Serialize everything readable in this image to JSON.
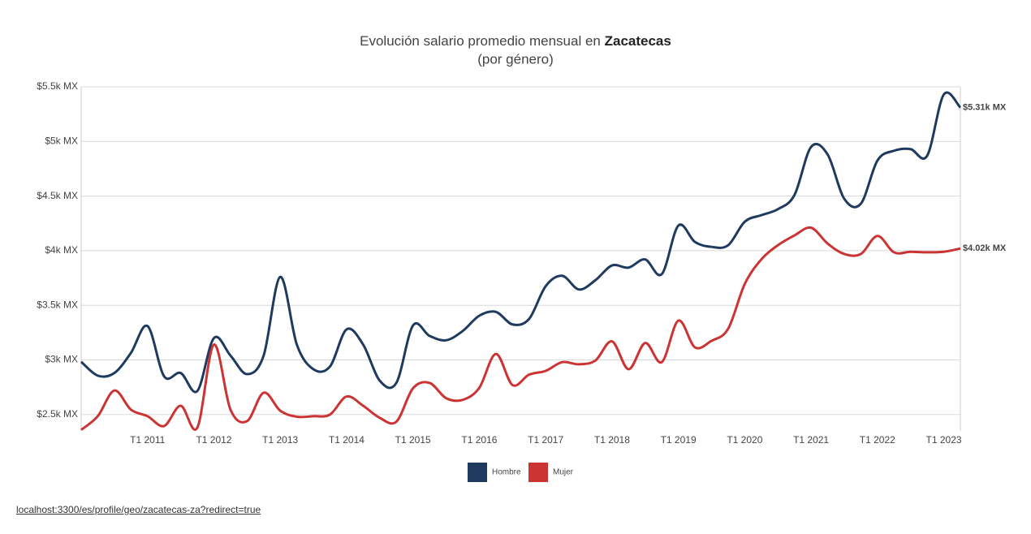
{
  "chart_data": {
    "type": "line",
    "title": "Evolución salario promedio mensual en",
    "title_emphasis": "Zacatecas",
    "subtitle": "(por género)",
    "categories": [
      null,
      null,
      null,
      null,
      "T1 2011",
      null,
      null,
      null,
      "T1 2012",
      null,
      null,
      null,
      "T1 2013",
      null,
      null,
      null,
      "T1 2014",
      null,
      null,
      null,
      "T1 2015",
      null,
      null,
      null,
      "T1 2016",
      null,
      null,
      null,
      "T1 2017",
      null,
      null,
      null,
      "T1 2018",
      null,
      null,
      null,
      "T1 2019",
      null,
      null,
      null,
      "T1 2020",
      null,
      null,
      null,
      "T1 2021",
      null,
      null,
      null,
      "T1 2022",
      null,
      null,
      null,
      "T1 2023",
      null
    ],
    "series": [
      {
        "name": "Hombre",
        "color": "#1f3a5f",
        "values": [
          2983,
          2856,
          2880,
          3065,
          3310,
          2850,
          2880,
          2715,
          3200,
          3040,
          2870,
          3040,
          3760,
          3140,
          2915,
          2940,
          3280,
          3140,
          2810,
          2790,
          3315,
          3220,
          3180,
          3265,
          3405,
          3440,
          3325,
          3375,
          3675,
          3770,
          3645,
          3730,
          3865,
          3845,
          3920,
          3785,
          4230,
          4080,
          4035,
          4050,
          4265,
          4325,
          4380,
          4510,
          4950,
          4880,
          4475,
          4430,
          4825,
          4915,
          4930,
          4870,
          5430,
          5310
        ],
        "value_labels": [
          null,
          null,
          null,
          null,
          null,
          null,
          null,
          null,
          null,
          null,
          null,
          null,
          null,
          null,
          null,
          null,
          null,
          null,
          null,
          null,
          null,
          null,
          null,
          null,
          null,
          null,
          null,
          null,
          null,
          null,
          null,
          null,
          null,
          null,
          null,
          null,
          null,
          null,
          null,
          null,
          null,
          null,
          null,
          null,
          null,
          null,
          null,
          null,
          null,
          null,
          null,
          null,
          null,
          "$5.31k MX"
        ]
      },
      {
        "name": "Mujer",
        "color": "#cc3333",
        "values": [
          2360,
          2485,
          2720,
          2545,
          2485,
          2395,
          2580,
          2380,
          3140,
          2545,
          2440,
          2700,
          2535,
          2480,
          2485,
          2500,
          2665,
          2580,
          2470,
          2435,
          2740,
          2790,
          2650,
          2635,
          2745,
          3055,
          2770,
          2865,
          2900,
          2980,
          2960,
          2995,
          3170,
          2915,
          3155,
          2980,
          3360,
          3115,
          3175,
          3285,
          3695,
          3920,
          4050,
          4140,
          4210,
          4065,
          3970,
          3970,
          4135,
          3985,
          3990,
          3985,
          3990,
          4020
        ],
        "value_labels": [
          null,
          null,
          null,
          null,
          null,
          null,
          null,
          null,
          null,
          null,
          null,
          null,
          null,
          null,
          null,
          null,
          null,
          null,
          null,
          null,
          null,
          null,
          null,
          null,
          null,
          null,
          null,
          null,
          null,
          null,
          null,
          null,
          null,
          null,
          null,
          null,
          null,
          null,
          null,
          null,
          null,
          null,
          null,
          null,
          null,
          null,
          null,
          null,
          null,
          null,
          null,
          null,
          null,
          "$4.02k MX"
        ]
      }
    ],
    "ylim": [
      2350,
      5500
    ],
    "yticks": [
      {
        "value": 2500,
        "label": "$2.5k MX"
      },
      {
        "value": 3000,
        "label": "$3k MX"
      },
      {
        "value": 3500,
        "label": "$3.5k MX"
      },
      {
        "value": 4000,
        "label": "$4k MX"
      },
      {
        "value": 4500,
        "label": "$4.5k MX"
      },
      {
        "value": 5000,
        "label": "$5k MX"
      },
      {
        "value": 5500,
        "label": "$5.5k MX"
      }
    ],
    "grid": true
  },
  "footer": {
    "url": "localhost:3300/es/profile/geo/zacatecas-za?redirect=true"
  }
}
